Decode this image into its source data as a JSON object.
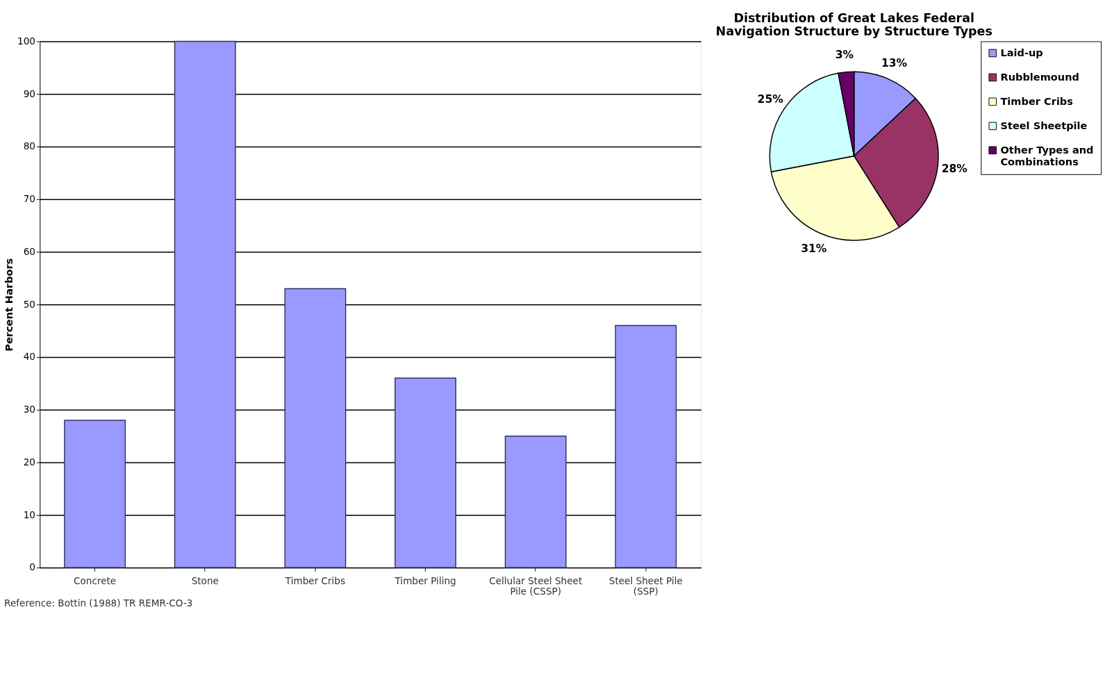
{
  "chart_data": [
    {
      "type": "bar",
      "categories": [
        "Concrete",
        "Stone",
        "Timber Cribs",
        "Timber Piling",
        "Cellular Steel Sheet\nPile (CSSP)",
        "Steel Sheet Pile\n(SSP)"
      ],
      "values": [
        28,
        100,
        53,
        36,
        25,
        46
      ],
      "color": "#9999ff",
      "ylabel": "Percent Harbors",
      "ylim": [
        0,
        100
      ],
      "yticks": [
        0,
        10,
        20,
        30,
        40,
        50,
        60,
        70,
        80,
        90,
        100
      ],
      "grid": "y",
      "annotations": [
        "Reference: Bottin (1988) TR REMR-CO-3"
      ]
    },
    {
      "type": "pie",
      "title": "Distribution of Great Lakes Federal\nNavigation Structure by Structure Types",
      "categories": [
        "Laid-up",
        "Rubblemound",
        "Timber Cribs",
        "Steel Sheetpile",
        "Other Types and\nCombinations"
      ],
      "values": [
        13,
        28,
        31,
        25,
        3
      ],
      "colors": [
        "#9999ff",
        "#993366",
        "#ffffcc",
        "#ccffff",
        "#660066"
      ],
      "value_labels": [
        "13%",
        "28%",
        "31%",
        "25%",
        "3%"
      ],
      "legend": "right"
    }
  ]
}
